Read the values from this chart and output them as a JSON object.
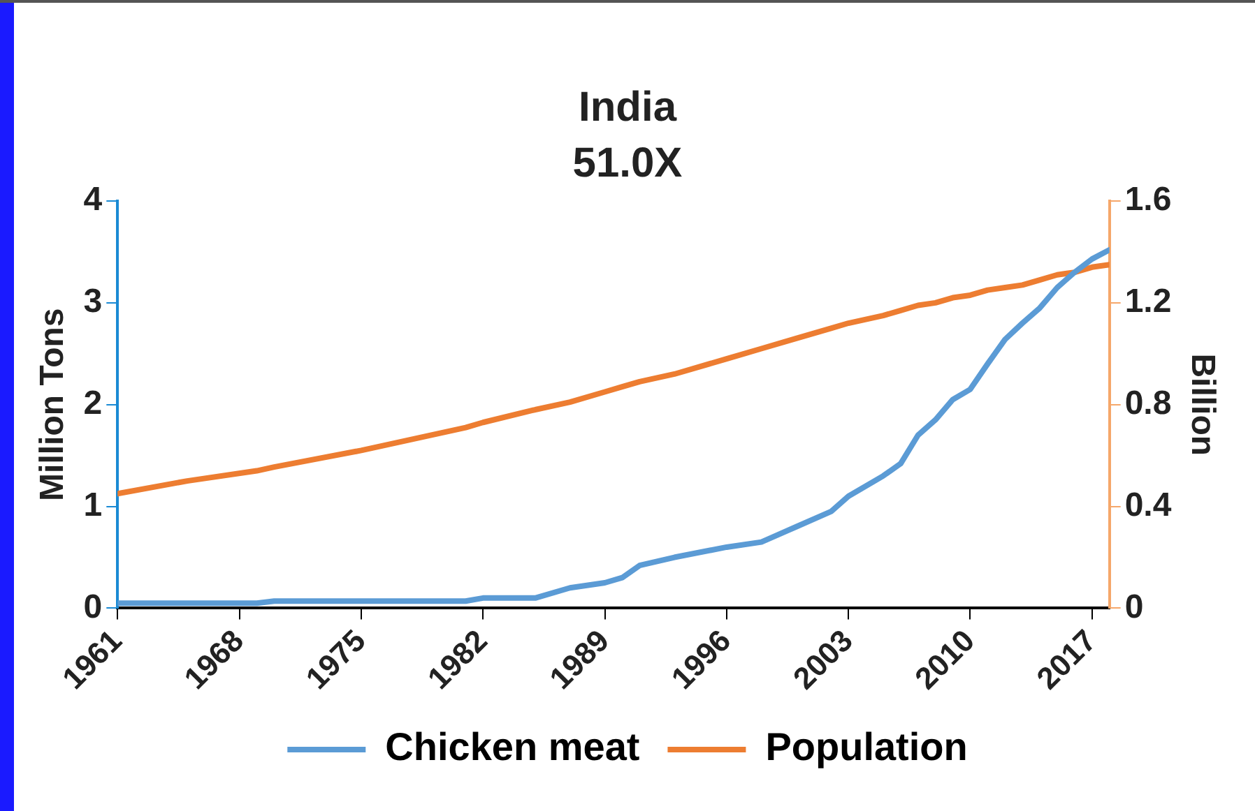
{
  "chart_data": {
    "type": "line",
    "title": "India",
    "subtitle": "51.0X",
    "ylabel": "Million Tons",
    "y2label": "Billion",
    "x": [
      1961,
      1965,
      1969,
      1970,
      1975,
      1981,
      1982,
      1985,
      1987,
      1989,
      1990,
      1991,
      1993,
      1996,
      1998,
      2000,
      2002,
      2003,
      2005,
      2006,
      2007,
      2008,
      2009,
      2010,
      2011,
      2012,
      2013,
      2014,
      2015,
      2016,
      2017,
      2018
    ],
    "series": [
      {
        "name": "Chicken meat",
        "color": "#5b9bd5",
        "values": [
          0.05,
          0.05,
          0.05,
          0.07,
          0.07,
          0.07,
          0.1,
          0.1,
          0.2,
          0.25,
          0.3,
          0.42,
          0.5,
          0.6,
          0.65,
          0.8,
          0.95,
          1.1,
          1.3,
          1.42,
          1.7,
          1.85,
          2.05,
          2.15,
          2.4,
          2.64,
          2.8,
          2.95,
          3.15,
          3.3,
          3.43,
          3.52
        ]
      },
      {
        "name": "Population",
        "color": "#ed7d31",
        "axis": "y2",
        "values": [
          0.45,
          0.5,
          0.54,
          0.555,
          0.62,
          0.71,
          0.73,
          0.78,
          0.81,
          0.85,
          0.87,
          0.89,
          0.92,
          0.98,
          1.02,
          1.06,
          1.1,
          1.12,
          1.15,
          1.17,
          1.19,
          1.2,
          1.22,
          1.23,
          1.25,
          1.26,
          1.27,
          1.29,
          1.31,
          1.32,
          1.34,
          1.35
        ]
      }
    ],
    "xlim": [
      1961,
      2018
    ],
    "xticks": [
      1961,
      1968,
      1975,
      1982,
      1989,
      1996,
      2003,
      2010,
      2017
    ],
    "ylim": [
      0,
      4
    ],
    "yticks": [
      0,
      1,
      2,
      3,
      4
    ],
    "y2lim": [
      0,
      1.6
    ],
    "y2ticks": [
      0,
      0.4,
      0.8,
      1.2,
      1.6
    ],
    "grid": false,
    "legend": "bottom",
    "marker": "none",
    "line_style": "solid"
  }
}
